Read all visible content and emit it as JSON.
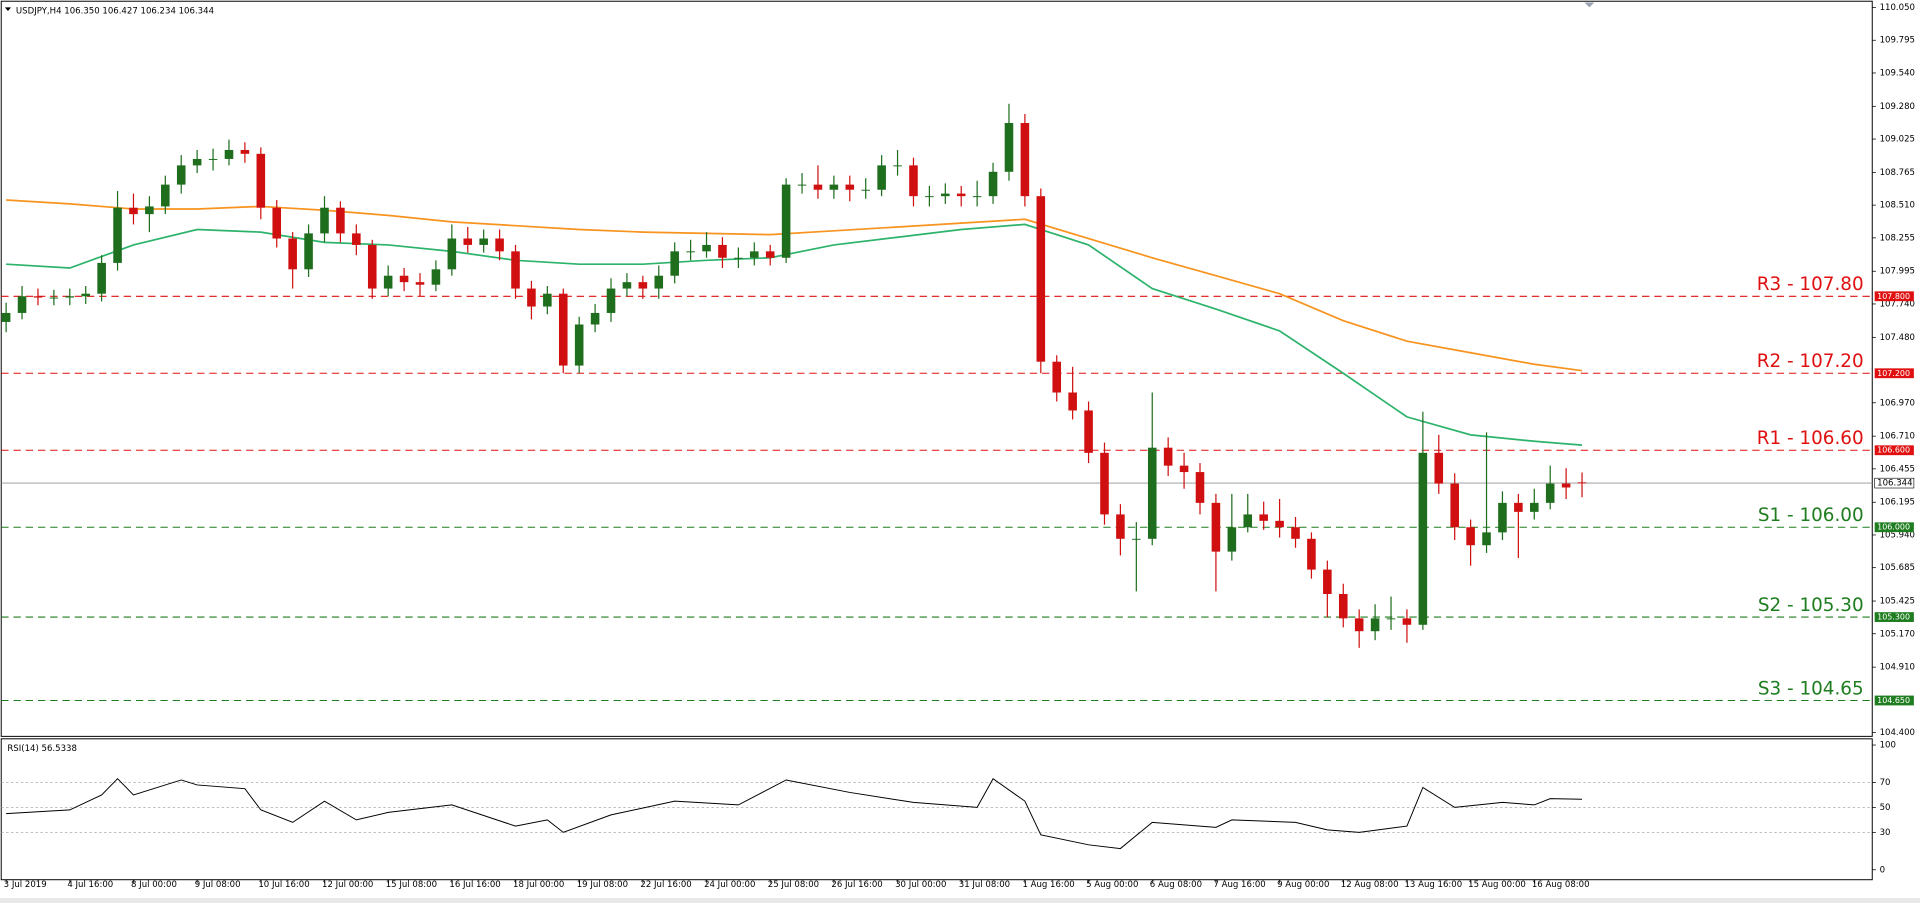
{
  "chart_data": {
    "type": "candlestick",
    "title": "USDJPY,H4  106.350 106.427 106.234 106.344",
    "categories": [
      "3 Jul 2019",
      "4 Jul 16:00",
      "8 Jul 00:00",
      "9 Jul 08:00",
      "10 Jul 16:00",
      "12 Jul 00:00",
      "15 Jul 08:00",
      "16 Jul 16:00",
      "18 Jul 00:00",
      "19 Jul 08:00",
      "22 Jul 16:00",
      "24 Jul 00:00",
      "25 Jul 08:00",
      "26 Jul 16:00",
      "30 Jul 00:00",
      "31 Jul 08:00",
      "1 Aug 16:00",
      "5 Aug 00:00",
      "6 Aug 08:00",
      "7 Aug 16:00",
      "9 Aug 00:00",
      "12 Aug 08:00",
      "13 Aug 16:00",
      "15 Aug 00:00",
      "16 Aug 08:00"
    ],
    "open": [
      107.6,
      107.67,
      107.8,
      107.79,
      107.79,
      107.8,
      107.82,
      108.06,
      108.49,
      108.44,
      108.5,
      108.67,
      108.82,
      108.87,
      108.87,
      108.94,
      108.91,
      108.49,
      108.25,
      108.01,
      108.29,
      108.49,
      108.29,
      108.2,
      107.86,
      107.96,
      107.91,
      107.89,
      108.01,
      108.25,
      108.2,
      108.25,
      108.15,
      107.86,
      107.72,
      107.82,
      107.26,
      107.58,
      107.67,
      107.86,
      107.91,
      107.86,
      107.96,
      108.15,
      108.15,
      108.2,
      108.1,
      108.1,
      108.15,
      108.1,
      108.67,
      108.67,
      108.63,
      108.67,
      108.63,
      108.63,
      108.82,
      108.82,
      108.58,
      108.58,
      108.6,
      108.58,
      108.58,
      108.77,
      109.15,
      108.58,
      107.29,
      107.05,
      106.91,
      106.58,
      106.1,
      105.91,
      105.91,
      106.62,
      106.48,
      106.43,
      106.19,
      105.81,
      106.0,
      106.1,
      106.05,
      106.0,
      105.91,
      105.67,
      105.48,
      105.29,
      105.19,
      105.29,
      105.29,
      105.24,
      106.58,
      106.34,
      106.0,
      105.86,
      105.96,
      106.19,
      106.12,
      106.19,
      106.34,
      106.35
    ],
    "high": [
      107.75,
      107.88,
      107.86,
      107.85,
      107.86,
      107.88,
      108.12,
      108.62,
      108.6,
      108.58,
      108.74,
      108.9,
      108.94,
      108.95,
      109.02,
      109.0,
      108.96,
      108.55,
      108.3,
      108.36,
      108.58,
      108.54,
      108.36,
      108.24,
      108.04,
      108.02,
      107.98,
      108.08,
      108.36,
      108.34,
      108.32,
      108.32,
      108.2,
      107.92,
      107.88,
      107.86,
      107.64,
      107.74,
      107.94,
      107.98,
      107.96,
      108.04,
      108.22,
      108.24,
      108.3,
      108.26,
      108.18,
      108.22,
      108.2,
      108.72,
      108.76,
      108.82,
      108.74,
      108.74,
      108.72,
      108.9,
      108.94,
      108.88,
      108.66,
      108.68,
      108.66,
      108.7,
      108.84,
      109.3,
      109.22,
      108.64,
      107.34,
      107.25,
      106.98,
      106.66,
      106.18,
      106.04,
      107.05,
      106.7,
      106.58,
      106.5,
      106.26,
      106.26,
      106.26,
      106.2,
      106.22,
      106.08,
      105.96,
      105.74,
      105.56,
      105.36,
      105.4,
      105.46,
      105.36,
      106.9,
      106.72,
      106.42,
      106.06,
      106.74,
      106.28,
      106.26,
      106.3,
      106.48,
      106.46,
      106.427
    ],
    "low": [
      107.52,
      107.62,
      107.73,
      107.73,
      107.73,
      107.74,
      107.76,
      108.0,
      108.36,
      108.3,
      108.44,
      108.6,
      108.76,
      108.78,
      108.82,
      108.84,
      108.4,
      108.18,
      107.86,
      107.95,
      108.22,
      108.22,
      108.12,
      107.78,
      107.8,
      107.84,
      107.8,
      107.84,
      107.96,
      108.14,
      108.14,
      108.08,
      107.78,
      107.62,
      107.66,
      107.2,
      107.2,
      107.52,
      107.6,
      107.8,
      107.78,
      107.78,
      107.9,
      108.08,
      108.1,
      108.02,
      108.02,
      108.04,
      108.04,
      108.06,
      108.6,
      108.56,
      108.56,
      108.54,
      108.56,
      108.58,
      108.74,
      108.5,
      108.5,
      108.52,
      108.5,
      108.5,
      108.52,
      108.7,
      108.5,
      107.2,
      106.98,
      106.84,
      106.5,
      106.02,
      105.78,
      105.5,
      105.86,
      106.4,
      106.3,
      106.1,
      105.5,
      105.74,
      105.96,
      105.98,
      105.92,
      105.84,
      105.6,
      105.3,
      105.22,
      105.06,
      105.12,
      105.2,
      105.1,
      105.2,
      106.26,
      105.9,
      105.7,
      105.8,
      105.9,
      105.76,
      106.06,
      106.14,
      106.22,
      106.234
    ],
    "close": [
      107.67,
      107.8,
      107.79,
      107.79,
      107.8,
      107.82,
      108.06,
      108.49,
      108.44,
      108.5,
      108.67,
      108.82,
      108.87,
      108.87,
      108.94,
      108.91,
      108.49,
      108.25,
      108.01,
      108.29,
      108.49,
      108.29,
      108.2,
      107.86,
      107.96,
      107.91,
      107.89,
      108.01,
      108.25,
      108.2,
      108.25,
      108.15,
      107.86,
      107.72,
      107.82,
      107.26,
      107.58,
      107.67,
      107.86,
      107.91,
      107.86,
      107.96,
      108.15,
      108.15,
      108.2,
      108.1,
      108.1,
      108.15,
      108.1,
      108.67,
      108.67,
      108.63,
      108.67,
      108.63,
      108.63,
      108.82,
      108.82,
      108.58,
      108.58,
      108.6,
      108.58,
      108.58,
      108.77,
      109.15,
      108.58,
      107.29,
      107.05,
      106.91,
      106.58,
      106.1,
      105.91,
      105.91,
      106.62,
      106.48,
      106.43,
      106.19,
      105.81,
      106.0,
      106.1,
      106.05,
      106.0,
      105.91,
      105.67,
      105.48,
      105.29,
      105.19,
      105.29,
      105.29,
      105.24,
      106.58,
      106.34,
      106.0,
      105.86,
      105.96,
      106.19,
      106.12,
      106.19,
      106.34,
      106.31,
      106.344
    ],
    "up_color": "#1e6e1e",
    "down_color": "#d01010",
    "ylim": [
      104.38,
      110.08
    ],
    "yticks": [
      {
        "value": 110.05,
        "label": "110.050"
      },
      {
        "value": 109.795,
        "label": "109.795"
      },
      {
        "value": 109.54,
        "label": "109.540"
      },
      {
        "value": 109.28,
        "label": "109.280"
      },
      {
        "value": 109.025,
        "label": "109.025"
      },
      {
        "value": 108.765,
        "label": "108.765"
      },
      {
        "value": 108.51,
        "label": "108.510"
      },
      {
        "value": 108.255,
        "label": "108.255"
      },
      {
        "value": 107.995,
        "label": "107.995"
      },
      {
        "value": 107.74,
        "label": "107.740"
      },
      {
        "value": 107.48,
        "label": "107.480"
      },
      {
        "value": 106.97,
        "label": "106.970"
      },
      {
        "value": 106.71,
        "label": "106.710"
      },
      {
        "value": 106.455,
        "label": "106.455"
      },
      {
        "value": 106.195,
        "label": "106.195"
      },
      {
        "value": 105.94,
        "label": "105.940"
      },
      {
        "value": 105.685,
        "label": "105.685"
      },
      {
        "value": 105.425,
        "label": "105.425"
      },
      {
        "value": 105.17,
        "label": "105.170"
      },
      {
        "value": 104.91,
        "label": "104.910"
      },
      {
        "value": 104.4,
        "label": "104.400"
      }
    ],
    "series": [
      {
        "color": "#f7931e",
        "x": [
          0,
          4,
          8,
          12,
          16,
          20,
          24,
          28,
          32,
          36,
          40,
          44,
          48,
          52,
          56,
          60,
          64,
          68,
          72,
          76,
          80,
          84,
          88,
          92,
          96,
          99
        ],
        "values": [
          108.55,
          108.52,
          108.48,
          108.48,
          108.5,
          108.47,
          108.43,
          108.38,
          108.35,
          108.32,
          108.3,
          108.29,
          108.28,
          108.31,
          108.34,
          108.37,
          108.4,
          108.25,
          108.1,
          107.96,
          107.82,
          107.61,
          107.45,
          107.36,
          107.27,
          107.22
        ]
      },
      {
        "color": "#2db36b",
        "x": [
          0,
          4,
          8,
          12,
          16,
          20,
          24,
          28,
          32,
          36,
          40,
          44,
          48,
          52,
          56,
          60,
          64,
          68,
          72,
          76,
          80,
          84,
          88,
          92,
          96,
          99
        ],
        "values": [
          108.05,
          108.02,
          108.2,
          108.32,
          108.3,
          108.22,
          108.2,
          108.15,
          108.08,
          108.05,
          108.05,
          108.08,
          108.1,
          108.2,
          108.26,
          108.32,
          108.36,
          108.2,
          107.86,
          107.7,
          107.53,
          107.2,
          106.86,
          106.72,
          106.67,
          106.64
        ]
      }
    ],
    "levels": [
      {
        "label": "R3 - 107.80",
        "value": 107.8,
        "tag": "107.800",
        "color": "#e01010"
      },
      {
        "label": "R2 - 107.20",
        "value": 107.2,
        "tag": "107.200",
        "color": "#e01010"
      },
      {
        "label": "R1 - 106.60",
        "value": 106.6,
        "tag": "106.600",
        "color": "#e01010"
      },
      {
        "label": "S1 - 106.00",
        "value": 106.0,
        "tag": "106.000",
        "color": "#1e7d1e"
      },
      {
        "label": "S2 - 105.30",
        "value": 105.3,
        "tag": "105.300",
        "color": "#1e7d1e"
      },
      {
        "label": "S3 - 104.65",
        "value": 104.65,
        "tag": "104.650",
        "color": "#1e7d1e"
      }
    ],
    "last": {
      "value": 106.344,
      "label": "106.344"
    },
    "rsi": {
      "title": "RSI(14) 56.5338",
      "color": "#000000",
      "ylim": [
        -7,
        104
      ],
      "yticks": [
        100,
        70,
        50,
        30,
        0
      ],
      "grid_levels": [
        70,
        50,
        30
      ],
      "x": [
        0,
        4,
        6,
        7,
        8,
        11,
        12,
        15,
        16,
        18,
        20,
        22,
        24,
        28,
        32,
        34,
        35,
        38,
        42,
        46,
        49,
        53,
        57,
        61,
        62,
        64,
        65,
        68,
        70,
        72,
        76,
        77,
        81,
        83,
        85,
        88,
        89,
        91,
        94,
        96,
        97,
        99
      ],
      "values": [
        45,
        48,
        60,
        73,
        60,
        72,
        68,
        65,
        48,
        38,
        55,
        40,
        46,
        52,
        35,
        40,
        30,
        44,
        55,
        52,
        72,
        62,
        54,
        50,
        73,
        55,
        28,
        20,
        17,
        38,
        34,
        40,
        38,
        32,
        30,
        35,
        66,
        50,
        54,
        52,
        57,
        56.5338
      ]
    }
  }
}
